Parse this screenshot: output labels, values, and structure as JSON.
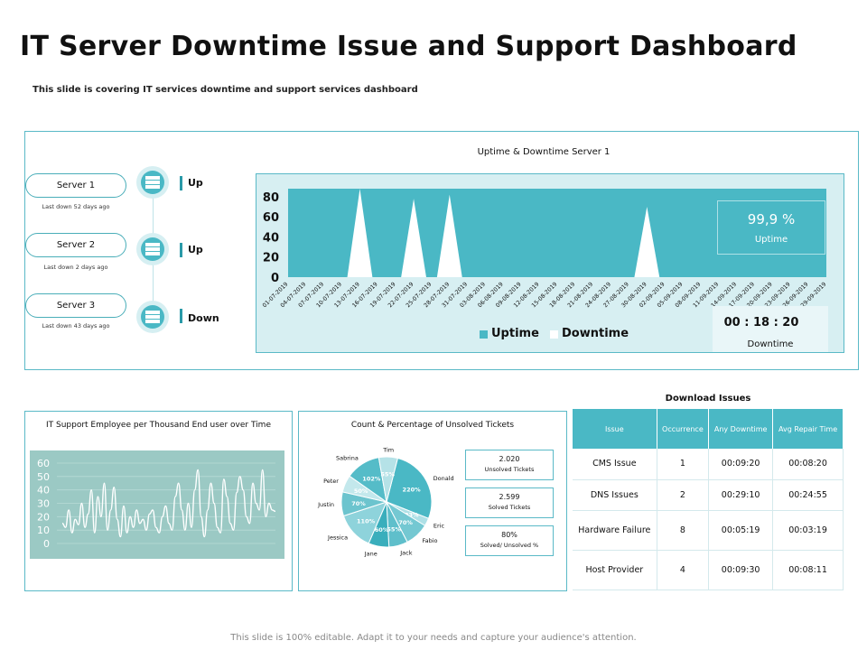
{
  "header": {
    "title": "IT Server Downtime Issue and Support Dashboard",
    "subtitle": "This slide is covering IT services downtime and support services dashboard"
  },
  "footer": "This slide is 100% editable. Adapt it to your needs and capture your audience's attention.",
  "servers": [
    {
      "name": "Server 1",
      "note": "Last down 52 days ago",
      "status": "Up"
    },
    {
      "name": "Server 2",
      "note": "Last down 2 days ago",
      "status": "Up"
    },
    {
      "name": "Server 3",
      "note": "Last down 43 days ago",
      "status": "Down"
    }
  ],
  "uptime_panel": {
    "title": "Uptime & Downtime Server 1",
    "uptime_value": "99,9 %",
    "uptime_label": "Uptime",
    "downtime_value": "00 : 18 : 20",
    "downtime_label": "Downtime",
    "legend": [
      "Uptime",
      "Downtime"
    ]
  },
  "support_panel": {
    "title": "IT Support Employee per Thousand End user over Time"
  },
  "tickets_panel": {
    "title": "Count & Percentage of Unsolved Tickets",
    "kpis": [
      {
        "value": "2.020",
        "label": "Unsolved Tickets"
      },
      {
        "value": "2.599",
        "label": "Solved Tickets"
      },
      {
        "value": "80%",
        "label": "Solved/ Unsolved %"
      }
    ]
  },
  "issues_table": {
    "title": "Download Issues",
    "headers": [
      "Issue",
      "Occurrence",
      "Any Downtime",
      "Avg Repair Time"
    ],
    "rows": [
      [
        "CMS Issue",
        "1",
        "00:09:20",
        "00:08:20"
      ],
      [
        "DNS Issues",
        "2",
        "00:29:10",
        "00:24:55"
      ],
      [
        "Hardware Failure",
        "8",
        "00:05:19",
        "00:03:19"
      ],
      [
        "Host Provider",
        "4",
        "00:09:30",
        "00:08:11"
      ]
    ]
  },
  "colors": {
    "accent": "#4ab8c5",
    "panel_border": "#5ab9c7",
    "light": "#d7eff2",
    "chart_bg": "#9bc9c4"
  },
  "chart_data": [
    {
      "type": "area",
      "categories": [
        "01-07-2019",
        "04-07-2019",
        "07-07-2019",
        "10-07-2019",
        "13-07-2019",
        "16-07-2019",
        "19-07-2019",
        "22-07-2019",
        "25-07-2019",
        "28-07-2019",
        "31-07-2019",
        "03-08-2019",
        "06-08-2019",
        "09-08-2019",
        "12-08-2019",
        "15-08-2019",
        "18-08-2019",
        "21-08-2019",
        "24-08-2019",
        "27-08-2019",
        "30-08-2019",
        "02-09-2019",
        "05-09-2019",
        "08-09-2019",
        "11-09-2019",
        "14-09-2019",
        "17-09-2019",
        "20-09-2019",
        "23-09-2019",
        "26-09-2019",
        "29-09-2019"
      ],
      "yticks": [
        0,
        20,
        40,
        60,
        80
      ],
      "ylim": [
        0,
        88
      ],
      "series": [
        {
          "name": "Uptime",
          "value": 88
        },
        {
          "name": "Downtime",
          "values": [
            0,
            0,
            0,
            0,
            88,
            0,
            0,
            78,
            0,
            82,
            0,
            0,
            0,
            0,
            0,
            0,
            0,
            0,
            0,
            0,
            70,
            0,
            0,
            0,
            0,
            0,
            0,
            0,
            0,
            0,
            0
          ]
        }
      ],
      "legend": "bottom"
    },
    {
      "type": "line",
      "yticks": [
        0,
        10,
        20,
        30,
        40,
        50,
        60
      ],
      "ylim": [
        0,
        60
      ],
      "values": [
        15,
        12,
        25,
        8,
        18,
        14,
        30,
        12,
        22,
        40,
        8,
        35,
        20,
        45,
        10,
        25,
        42,
        18,
        5,
        28,
        8,
        20,
        12,
        25,
        15,
        18,
        10,
        22,
        25,
        12,
        8,
        20,
        28,
        15,
        10,
        35,
        45,
        25,
        10,
        30,
        12,
        40,
        55,
        20,
        5,
        25,
        45,
        30,
        12,
        8,
        48,
        35,
        15,
        10,
        38,
        50,
        40,
        20,
        15,
        45,
        30,
        25,
        55,
        20,
        30,
        25,
        24
      ]
    },
    {
      "type": "pie",
      "slices": [
        {
          "label": "Donald",
          "value": 220,
          "pct_label": "220%"
        },
        {
          "label": "Eric",
          "value": 23,
          "pct_label": "23%"
        },
        {
          "label": "Fabio",
          "value": 70,
          "pct_label": "70%"
        },
        {
          "label": "Jack",
          "value": 55,
          "pct_label": "55%"
        },
        {
          "label": "Jane",
          "value": 60,
          "pct_label": "60%"
        },
        {
          "label": "Jessica",
          "value": 110,
          "pct_label": "110%"
        },
        {
          "label": "Justin",
          "value": 70,
          "pct_label": "70%"
        },
        {
          "label": "Peter",
          "value": 50,
          "pct_label": "50%"
        },
        {
          "label": "Sabrina",
          "value": 102,
          "pct_label": "102%"
        },
        {
          "label": "Tim",
          "value": 55,
          "pct_label": "55%"
        }
      ]
    }
  ]
}
